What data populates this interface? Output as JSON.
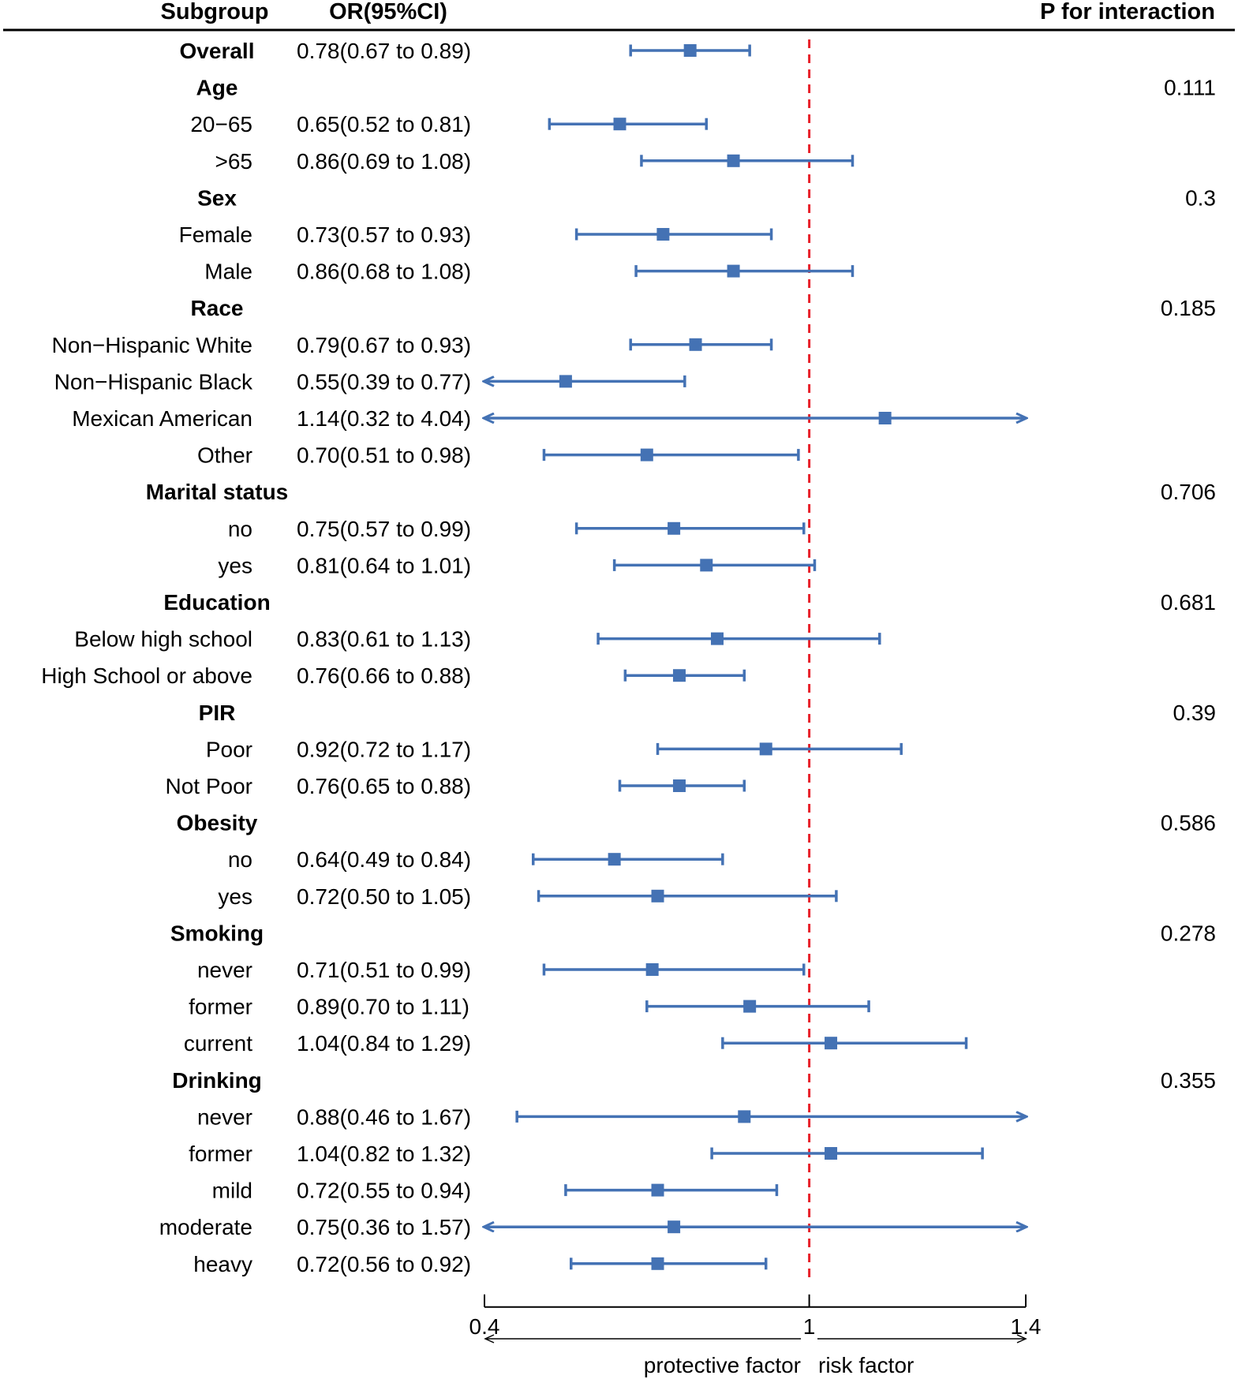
{
  "chart_data": {
    "type": "forest",
    "header": {
      "subgroup": "Subgroup",
      "or_ci": "OR(95%CI)",
      "p_interaction": "P for interaction"
    },
    "x_axis": {
      "min": 0.4,
      "max": 1.4,
      "ticks": [
        0.4,
        1,
        1.4
      ],
      "tick_labels": [
        "0.4",
        "1",
        "1.4"
      ],
      "reference_line": 1,
      "left_annotation": "protective factor",
      "right_annotation": "risk factor"
    },
    "colors": {
      "estimate": "#4472b4",
      "reference": "#e8202a",
      "axis": "#000000"
    },
    "rows": [
      {
        "label": "Overall",
        "is_group": true,
        "or_text": "0.78(0.67 to 0.89)",
        "or": 0.78,
        "lower": 0.67,
        "upper": 0.89,
        "p": ""
      },
      {
        "label": "Age",
        "is_group": true,
        "or_text": "",
        "p": "0.111"
      },
      {
        "label": "20−65",
        "is_group": false,
        "or_text": "0.65(0.52 to 0.81)",
        "or": 0.65,
        "lower": 0.52,
        "upper": 0.81,
        "p": ""
      },
      {
        "label": ">65",
        "is_group": false,
        "or_text": "0.86(0.69 to 1.08)",
        "or": 0.86,
        "lower": 0.69,
        "upper": 1.08,
        "p": ""
      },
      {
        "label": "Sex",
        "is_group": true,
        "or_text": "",
        "p": "0.3"
      },
      {
        "label": "Female",
        "is_group": false,
        "or_text": "0.73(0.57 to 0.93)",
        "or": 0.73,
        "lower": 0.57,
        "upper": 0.93,
        "p": ""
      },
      {
        "label": "Male",
        "is_group": false,
        "or_text": "0.86(0.68 to 1.08)",
        "or": 0.86,
        "lower": 0.68,
        "upper": 1.08,
        "p": ""
      },
      {
        "label": "Race",
        "is_group": true,
        "or_text": "",
        "p": "0.185"
      },
      {
        "label": "Non−Hispanic White",
        "is_group": false,
        "or_text": "0.79(0.67 to 0.93)",
        "or": 0.79,
        "lower": 0.67,
        "upper": 0.93,
        "p": ""
      },
      {
        "label": "Non−Hispanic Black",
        "is_group": false,
        "or_text": "0.55(0.39 to 0.77)",
        "or": 0.55,
        "lower": 0.39,
        "upper": 0.77,
        "p": ""
      },
      {
        "label": "Mexican American",
        "is_group": false,
        "or_text": "1.14(0.32 to 4.04)",
        "or": 1.14,
        "lower": 0.32,
        "upper": 4.04,
        "p": ""
      },
      {
        "label": "Other",
        "is_group": false,
        "or_text": "0.70(0.51 to 0.98)",
        "or": 0.7,
        "lower": 0.51,
        "upper": 0.98,
        "p": ""
      },
      {
        "label": "Marital status",
        "is_group": true,
        "or_text": "",
        "p": "0.706"
      },
      {
        "label": "no",
        "is_group": false,
        "or_text": "0.75(0.57 to 0.99)",
        "or": 0.75,
        "lower": 0.57,
        "upper": 0.99,
        "p": ""
      },
      {
        "label": "yes",
        "is_group": false,
        "or_text": "0.81(0.64 to 1.01)",
        "or": 0.81,
        "lower": 0.64,
        "upper": 1.01,
        "p": ""
      },
      {
        "label": "Education",
        "is_group": true,
        "or_text": "",
        "p": "0.681"
      },
      {
        "label": "Below high school",
        "is_group": false,
        "or_text": "0.83(0.61 to 1.13)",
        "or": 0.83,
        "lower": 0.61,
        "upper": 1.13,
        "p": ""
      },
      {
        "label": "High School or above",
        "is_group": false,
        "or_text": "0.76(0.66 to 0.88)",
        "or": 0.76,
        "lower": 0.66,
        "upper": 0.88,
        "p": ""
      },
      {
        "label": "PIR",
        "is_group": true,
        "or_text": "",
        "p": "0.39"
      },
      {
        "label": "Poor",
        "is_group": false,
        "or_text": "0.92(0.72 to 1.17)",
        "or": 0.92,
        "lower": 0.72,
        "upper": 1.17,
        "p": ""
      },
      {
        "label": "Not Poor",
        "is_group": false,
        "or_text": "0.76(0.65 to 0.88)",
        "or": 0.76,
        "lower": 0.65,
        "upper": 0.88,
        "p": ""
      },
      {
        "label": "Obesity",
        "is_group": true,
        "or_text": "",
        "p": "0.586"
      },
      {
        "label": "no",
        "is_group": false,
        "or_text": "0.64(0.49 to 0.84)",
        "or": 0.64,
        "lower": 0.49,
        "upper": 0.84,
        "p": ""
      },
      {
        "label": "yes",
        "is_group": false,
        "or_text": "0.72(0.50 to 1.05)",
        "or": 0.72,
        "lower": 0.5,
        "upper": 1.05,
        "p": ""
      },
      {
        "label": "Smoking",
        "is_group": true,
        "or_text": "",
        "p": "0.278"
      },
      {
        "label": "never",
        "is_group": false,
        "or_text": "0.71(0.51 to 0.99)",
        "or": 0.71,
        "lower": 0.51,
        "upper": 0.99,
        "p": ""
      },
      {
        "label": "former",
        "is_group": false,
        "or_text": "0.89(0.70 to 1.11)",
        "or": 0.89,
        "lower": 0.7,
        "upper": 1.11,
        "p": ""
      },
      {
        "label": "current",
        "is_group": false,
        "or_text": "1.04(0.84 to 1.29)",
        "or": 1.04,
        "lower": 0.84,
        "upper": 1.29,
        "p": ""
      },
      {
        "label": "Drinking",
        "is_group": true,
        "or_text": "",
        "p": "0.355"
      },
      {
        "label": "never",
        "is_group": false,
        "or_text": "0.88(0.46 to 1.67)",
        "or": 0.88,
        "lower": 0.46,
        "upper": 1.67,
        "p": ""
      },
      {
        "label": "former",
        "is_group": false,
        "or_text": "1.04(0.82 to 1.32)",
        "or": 1.04,
        "lower": 0.82,
        "upper": 1.32,
        "p": ""
      },
      {
        "label": "mild",
        "is_group": false,
        "or_text": "0.72(0.55 to 0.94)",
        "or": 0.72,
        "lower": 0.55,
        "upper": 0.94,
        "p": ""
      },
      {
        "label": "moderate",
        "is_group": false,
        "or_text": "0.75(0.36 to 1.57)",
        "or": 0.75,
        "lower": 0.36,
        "upper": 1.57,
        "p": ""
      },
      {
        "label": "heavy",
        "is_group": false,
        "or_text": "0.72(0.56 to 0.92)",
        "or": 0.72,
        "lower": 0.56,
        "upper": 0.92,
        "p": ""
      }
    ]
  }
}
